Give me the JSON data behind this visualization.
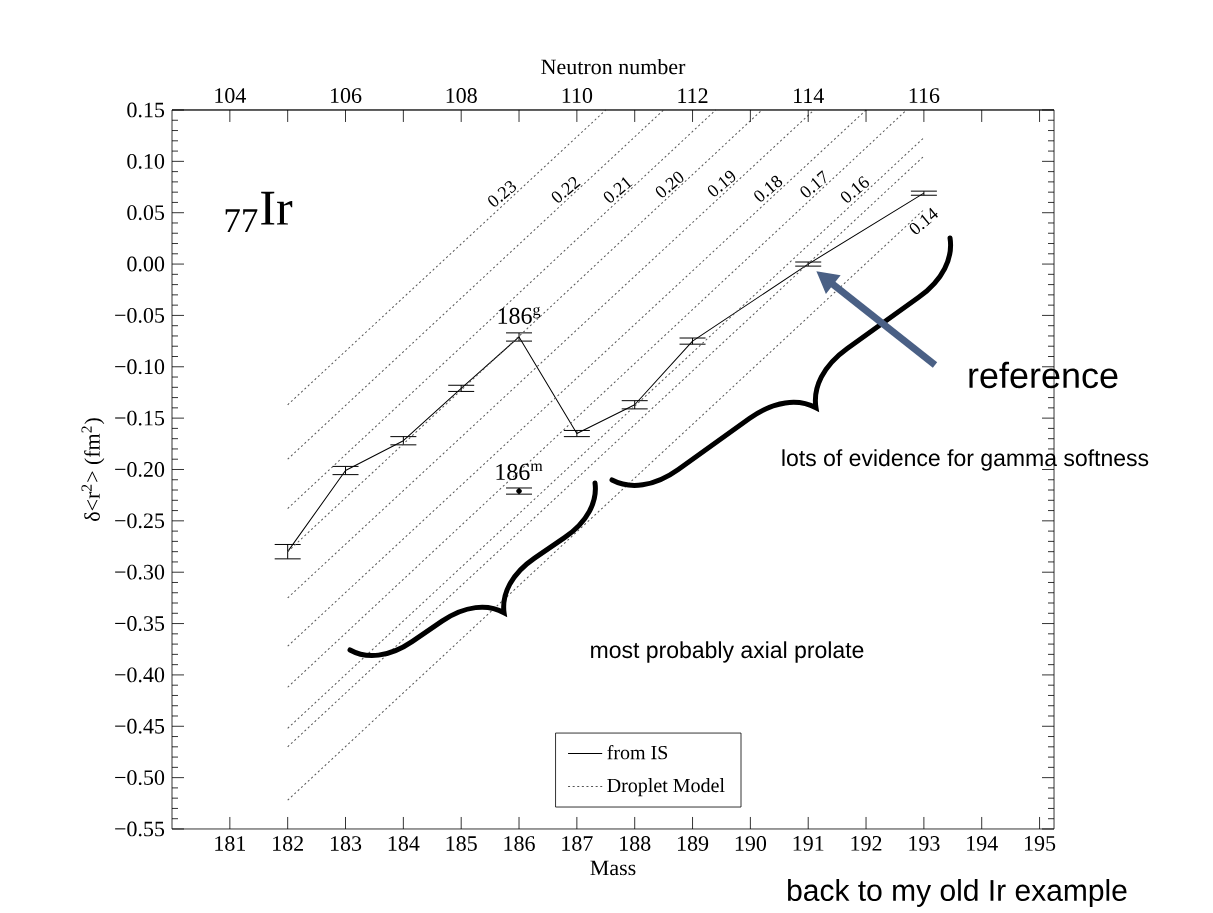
{
  "chart_data": {
    "type": "line",
    "xlabel": "Mass",
    "x2label": "Neutron number",
    "ylabel": "δ<r$^{2}$> (fm$^{2}$)",
    "xlim": [
      180,
      195.25
    ],
    "xticks": [
      181,
      182,
      183,
      184,
      185,
      186,
      187,
      188,
      189,
      190,
      191,
      192,
      193,
      194,
      195
    ],
    "x2lim": [
      103,
      118.25
    ],
    "x2ticks": [
      104,
      {
        "value": 105,
        "label": null
      },
      106,
      {
        "value": 107,
        "label": null
      },
      108,
      {
        "value": 109,
        "label": null
      },
      110,
      {
        "value": 111,
        "label": null
      },
      112,
      {
        "value": 113,
        "label": null
      },
      114,
      {
        "value": 115,
        "label": null
      },
      116,
      {
        "value": 117,
        "label": null
      },
      {
        "value": 118,
        "label": null
      }
    ],
    "ylim": [
      -0.55,
      0.15
    ],
    "yticks": [
      {
        "value": -0.55,
        "label": "−0.55"
      },
      {
        "value": -0.5,
        "label": "−0.50"
      },
      {
        "value": -0.45,
        "label": "−0.45"
      },
      {
        "value": -0.4,
        "label": "−0.40"
      },
      {
        "value": -0.35,
        "label": "−0.35"
      },
      {
        "value": -0.3,
        "label": "−0.30"
      },
      {
        "value": -0.25,
        "label": "−0.25"
      },
      {
        "value": -0.2,
        "label": "−0.20"
      },
      {
        "value": -0.15,
        "label": "−0.15"
      },
      {
        "value": -0.1,
        "label": "−0.10"
      },
      {
        "value": -0.05,
        "label": "−0.05"
      },
      {
        "value": 0,
        "label": "0.00"
      },
      {
        "value": 0.05,
        "label": "0.05"
      },
      {
        "value": 0.1,
        "label": "0.10"
      },
      {
        "value": 0.15,
        "label": "0.15"
      }
    ],
    "legend": "bottom",
    "grid": false,
    "marker": "none",
    "series": [
      {
        "name": "from IS",
        "color": "#000000",
        "x": [
          182,
          183,
          184,
          185,
          186,
          187,
          188,
          189,
          191,
          193
        ],
        "values": [
          -0.28,
          -0.201,
          -0.172,
          -0.121,
          -0.071,
          -0.165,
          -0.137,
          -0.075,
          0.0,
          0.069
        ],
        "errors": [
          0.007,
          0.004,
          0.004,
          0.003,
          0.004,
          0.003,
          0.004,
          0.003,
          0.002,
          0.002
        ]
      },
      {
        "type": "scatter",
        "marker": "circle",
        "color": "#000000",
        "x": [
          186
        ],
        "values": [
          -0.221
        ],
        "errors": [
          0.003
        ]
      },
      {
        "name": "Droplet Model",
        "color": "#555555",
        "line_style": "dotted",
        "x": [
          182,
          187.5
        ],
        "values": [
          -0.137,
          0.15
        ]
      },
      {
        "color": "#555555",
        "line_style": "dotted",
        "x": [
          182,
          188.5
        ],
        "values": [
          -0.19,
          0.15
        ]
      },
      {
        "color": "#555555",
        "line_style": "dotted",
        "x": [
          182,
          189.4
        ],
        "values": [
          -0.238,
          0.15
        ]
      },
      {
        "color": "#555555",
        "line_style": "dotted",
        "x": [
          182,
          190.2
        ],
        "values": [
          -0.28,
          0.15
        ]
      },
      {
        "color": "#555555",
        "line_style": "dotted",
        "x": [
          182,
          191.1
        ],
        "values": [
          -0.325,
          0.15
        ]
      },
      {
        "color": "#555555",
        "line_style": "dotted",
        "x": [
          182,
          192.0
        ],
        "values": [
          -0.372,
          0.15
        ]
      },
      {
        "color": "#555555",
        "line_style": "dotted",
        "x": [
          182,
          192.7
        ],
        "values": [
          -0.412,
          0.15
        ]
      },
      {
        "color": "#555555",
        "line_style": "dotted",
        "x": [
          182,
          193
        ],
        "values": [
          -0.452,
          0.123
        ]
      },
      {
        "color": "#555555",
        "line_style": "dotted",
        "x": [
          182,
          193
        ],
        "values": [
          -0.47,
          0.105
        ]
      },
      {
        "color": "#555555",
        "line_style": "dotted",
        "x": [
          182,
          193
        ],
        "values": [
          -0.522,
          0.053
        ]
      }
    ],
    "annotations": [
      "$_{77}$Ir",
      {
        "text": "0.23",
        "x": 185.8,
        "y": 0.062
      },
      {
        "text": "0.22",
        "x": 186.9,
        "y": 0.066
      },
      {
        "text": "0.21",
        "x": 187.8,
        "y": 0.066
      },
      {
        "text": "0.20",
        "x": 188.7,
        "y": 0.071
      },
      {
        "text": "0.19",
        "x": 189.6,
        "y": 0.072
      },
      {
        "text": "0.18",
        "x": 190.4,
        "y": 0.067
      },
      {
        "text": "0.17",
        "x": 191.2,
        "y": 0.071
      },
      {
        "text": "0.16",
        "x": 191.9,
        "y": 0.066
      },
      {
        "text": "0.14",
        "x": 192.9,
        "y": 0.048
      },
      {
        "text": "186$^{g}$",
        "x": 186,
        "y": -0.071
      },
      {
        "text": "186$^{m}$",
        "x": 186,
        "y": -0.221
      },
      "reference",
      "lots of evidence for gamma softness",
      "most probably axial prolate",
      "back to my old Ir example"
    ]
  }
}
